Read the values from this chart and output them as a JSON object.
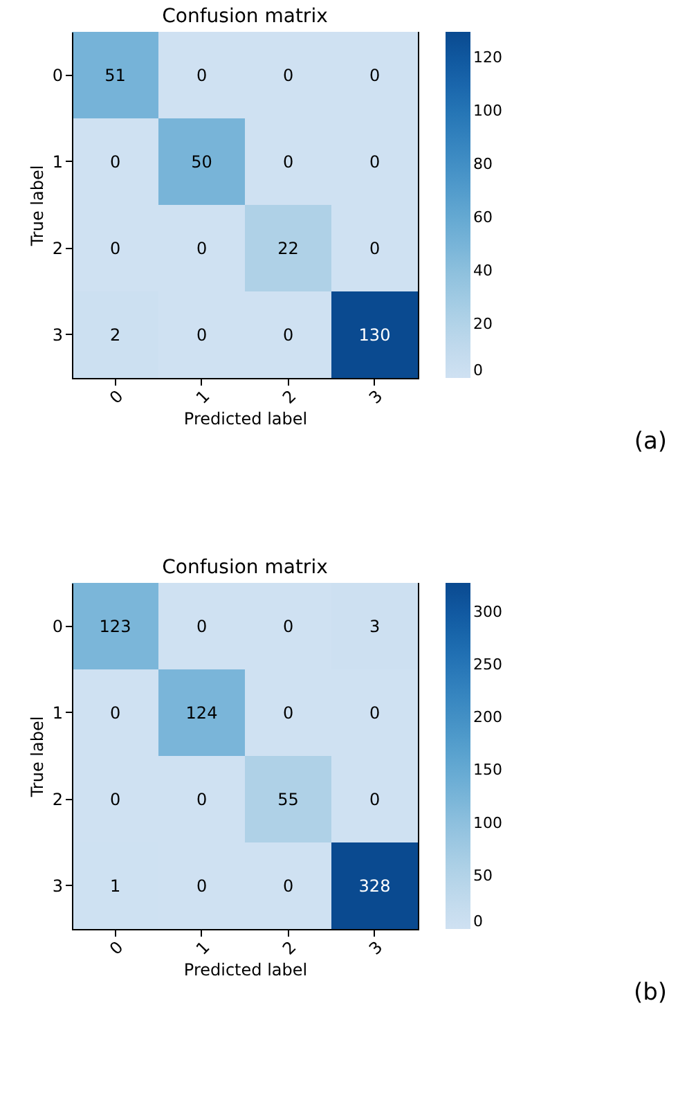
{
  "chart_data": [
    {
      "type": "heatmap",
      "title": "Confusion matrix",
      "xlabel": "Predicted label",
      "ylabel": "True label",
      "categories": [
        "0",
        "1",
        "2",
        "3"
      ],
      "y_categories": [
        "0",
        "1",
        "2",
        "3"
      ],
      "cells": [
        [
          51,
          0,
          0,
          0
        ],
        [
          0,
          50,
          0,
          0
        ],
        [
          0,
          0,
          22,
          0
        ],
        [
          2,
          0,
          0,
          130
        ]
      ],
      "clim": [
        0,
        130
      ],
      "cticks": [
        0,
        20,
        40,
        60,
        80,
        100,
        120
      ],
      "data_labels": true,
      "annotations": [
        "(a)"
      ]
    },
    {
      "type": "heatmap",
      "title": "Confusion matrix",
      "xlabel": "Predicted label",
      "ylabel": "True label",
      "categories": [
        "0",
        "1",
        "2",
        "3"
      ],
      "y_categories": [
        "0",
        "1",
        "2",
        "3"
      ],
      "cells": [
        [
          123,
          0,
          0,
          3
        ],
        [
          0,
          124,
          0,
          0
        ],
        [
          0,
          0,
          55,
          0
        ],
        [
          1,
          0,
          0,
          328
        ]
      ],
      "clim": [
        0,
        328
      ],
      "cticks": [
        0,
        50,
        100,
        150,
        200,
        250,
        300
      ],
      "data_labels": true,
      "annotations": [
        "(b)"
      ]
    }
  ]
}
